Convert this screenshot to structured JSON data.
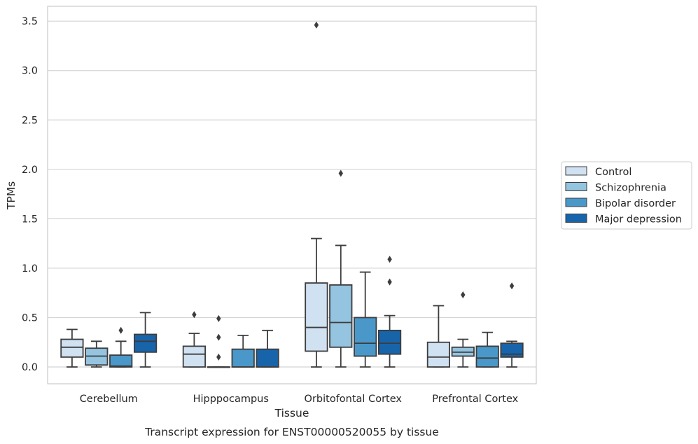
{
  "chart_data": {
    "type": "box",
    "xlabel": "Tissue",
    "ylabel": "TPMs",
    "caption": "Transcript expression for ENST00000520055 by tissue",
    "categories": [
      "Cerebellum",
      "Hipppocampus",
      "Orbitofontal Cortex",
      "Prefrontal Cortex"
    ],
    "ylim": [
      -0.17,
      3.65
    ],
    "yticks": [
      0.0,
      0.5,
      1.0,
      1.5,
      2.0,
      2.5,
      3.0,
      3.5
    ],
    "ytick_labels": [
      "0.0",
      "0.5",
      "1.0",
      "1.5",
      "2.0",
      "2.5",
      "3.0",
      "3.5"
    ],
    "grid": "horizontal",
    "legend_position": "right",
    "series": [
      {
        "name": "Control",
        "color": "#d0e1f2",
        "boxes": [
          {
            "whislo": 0.0,
            "q1": 0.1,
            "med": 0.2,
            "q3": 0.28,
            "whishi": 0.38,
            "fliers": []
          },
          {
            "whislo": 0.0,
            "q1": 0.0,
            "med": 0.13,
            "q3": 0.21,
            "whishi": 0.34,
            "fliers": [
              0.53
            ]
          },
          {
            "whislo": 0.0,
            "q1": 0.16,
            "med": 0.4,
            "q3": 0.85,
            "whishi": 1.3,
            "fliers": [
              3.46
            ]
          },
          {
            "whislo": 0.0,
            "q1": 0.0,
            "med": 0.1,
            "q3": 0.25,
            "whishi": 0.62,
            "fliers": []
          }
        ]
      },
      {
        "name": "Schizophrenia",
        "color": "#94c4df",
        "boxes": [
          {
            "whislo": 0.0,
            "q1": 0.02,
            "med": 0.11,
            "q3": 0.19,
            "whishi": 0.26,
            "fliers": []
          },
          {
            "whislo": 0.0,
            "q1": 0.0,
            "med": 0.0,
            "q3": 0.0,
            "whishi": 0.0,
            "fliers": [
              0.1,
              0.3,
              0.49
            ]
          },
          {
            "whislo": 0.0,
            "q1": 0.2,
            "med": 0.45,
            "q3": 0.83,
            "whishi": 1.23,
            "fliers": [
              1.96
            ]
          },
          {
            "whislo": 0.0,
            "q1": 0.11,
            "med": 0.15,
            "q3": 0.2,
            "whishi": 0.28,
            "fliers": [
              0.73
            ]
          }
        ]
      },
      {
        "name": "Bipolar disorder",
        "color": "#4a98c9",
        "boxes": [
          {
            "whislo": 0.0,
            "q1": 0.0,
            "med": 0.01,
            "q3": 0.12,
            "whishi": 0.26,
            "fliers": [
              0.37
            ]
          },
          {
            "whislo": 0.0,
            "q1": 0.0,
            "med": 0.0,
            "q3": 0.18,
            "whishi": 0.32,
            "fliers": []
          },
          {
            "whislo": 0.0,
            "q1": 0.11,
            "med": 0.24,
            "q3": 0.5,
            "whishi": 0.96,
            "fliers": []
          },
          {
            "whislo": 0.0,
            "q1": 0.0,
            "med": 0.09,
            "q3": 0.21,
            "whishi": 0.35,
            "fliers": []
          }
        ]
      },
      {
        "name": "Major depression",
        "color": "#1764ab",
        "boxes": [
          {
            "whislo": 0.0,
            "q1": 0.15,
            "med": 0.26,
            "q3": 0.33,
            "whishi": 0.55,
            "fliers": []
          },
          {
            "whislo": 0.0,
            "q1": 0.0,
            "med": 0.0,
            "q3": 0.18,
            "whishi": 0.37,
            "fliers": []
          },
          {
            "whislo": 0.0,
            "q1": 0.13,
            "med": 0.24,
            "q3": 0.37,
            "whishi": 0.52,
            "fliers": [
              0.86,
              1.09
            ]
          },
          {
            "whislo": 0.0,
            "q1": 0.1,
            "med": 0.13,
            "q3": 0.24,
            "whishi": 0.26,
            "fliers": [
              0.82
            ]
          }
        ]
      }
    ]
  }
}
